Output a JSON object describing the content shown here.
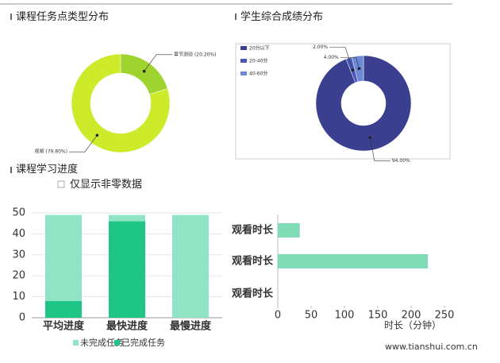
{
  "chart_data": [
    {
      "type": "pie",
      "title": "课程任务点类型分布",
      "labels": [
        "章节测验 (20.20%)",
        "视频 (79.80%)"
      ],
      "values": [
        20.2,
        79.8
      ],
      "colors": [
        "#9fd42f",
        "#cdea2b"
      ]
    },
    {
      "type": "pie",
      "title": "学生综合成绩分布",
      "categories": [
        "20分以下",
        "20-40分",
        "40-60分"
      ],
      "values": [
        94,
        2,
        4
      ],
      "value_labels": [
        "94.00%",
        "2.00%",
        "4.00%"
      ],
      "colors": [
        "#3a3f90",
        "#4b57bb",
        "#6c89d3"
      ],
      "legend": "top-left"
    },
    {
      "type": "stacked_bar",
      "title": "课程学习进度",
      "checkbox": "仅显示非零数据",
      "categories": [
        "平均进度",
        "最快进度",
        "最慢进度"
      ],
      "series": [
        {
          "name": "已完成任务",
          "color": "#1fc586",
          "values": [
            8,
            46,
            0
          ]
        },
        {
          "name": "未完成任务",
          "color": "#8fe4c6",
          "values": [
            41,
            3,
            49
          ]
        }
      ],
      "ylim": [
        0,
        50
      ],
      "yticks": [
        0,
        10,
        20,
        30,
        40,
        50
      ],
      "grid": true
    },
    {
      "type": "hbar",
      "categories": [
        "观看时长",
        "观看时长",
        "观看时长"
      ],
      "values": [
        33,
        225,
        0
      ],
      "color": "#7fdcb7",
      "xlim": [
        0,
        250
      ],
      "xticks": [
        0,
        50,
        100,
        150,
        200,
        250
      ],
      "xlabel": "时长（分钟）"
    }
  ],
  "watermark": "www.tianshui.com.cn"
}
